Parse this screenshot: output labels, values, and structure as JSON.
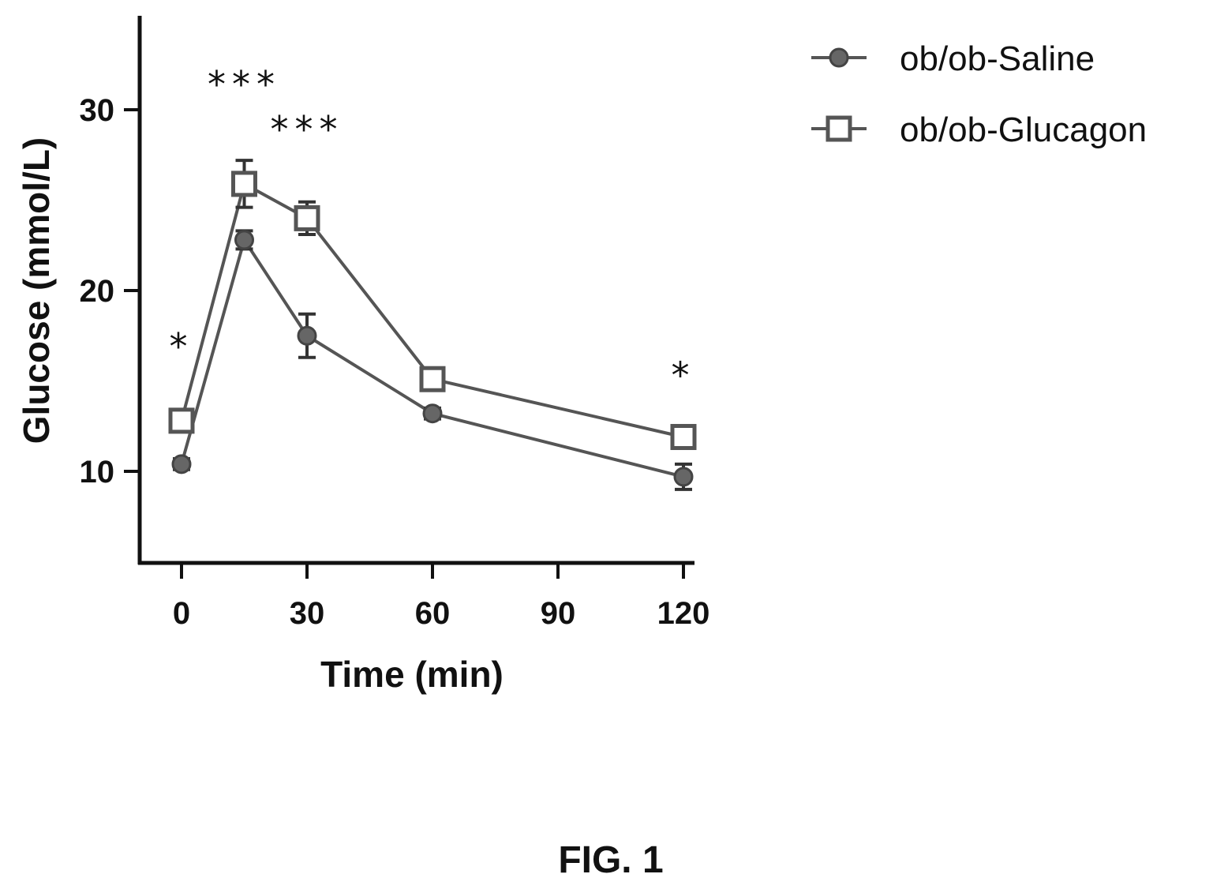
{
  "chart_data": {
    "type": "line",
    "title": "",
    "xlabel": "Time (min)",
    "ylabel": "Glucose (mmol/L)",
    "xlim": [
      -8,
      125
    ],
    "ylim": [
      5,
      35
    ],
    "x_ticks": [
      0,
      30,
      60,
      90,
      120
    ],
    "x_tick_labels": [
      "0",
      "30",
      "60",
      "90",
      "120"
    ],
    "y_ticks": [
      10,
      20,
      30
    ],
    "y_tick_labels": [
      "10",
      "20",
      "30"
    ],
    "grid": false,
    "legend_position": "top-right",
    "series": [
      {
        "name": "ob/ob-Saline",
        "marker": "filled-circle",
        "color": "#555555",
        "x": [
          0,
          15,
          30,
          60,
          120
        ],
        "y": [
          10.4,
          22.8,
          17.5,
          13.2,
          9.7
        ],
        "error": [
          0.3,
          0.5,
          1.2,
          0.3,
          0.7
        ]
      },
      {
        "name": "ob/ob-Glucagon",
        "marker": "open-square",
        "color": "#555555",
        "x": [
          0,
          15,
          30,
          60,
          120
        ],
        "y": [
          12.8,
          25.9,
          24.0,
          15.1,
          11.9
        ],
        "error": [
          0.6,
          1.3,
          0.9,
          0.5,
          0.4
        ]
      }
    ],
    "annotations": [
      {
        "text": "*",
        "x": 0,
        "y": 16.2
      },
      {
        "text": "***",
        "x": 15,
        "y": 30.7
      },
      {
        "text": "***",
        "x": 30,
        "y": 28.2
      },
      {
        "text": "*",
        "x": 120,
        "y": 14.6
      }
    ]
  },
  "caption": "FIG. 1"
}
